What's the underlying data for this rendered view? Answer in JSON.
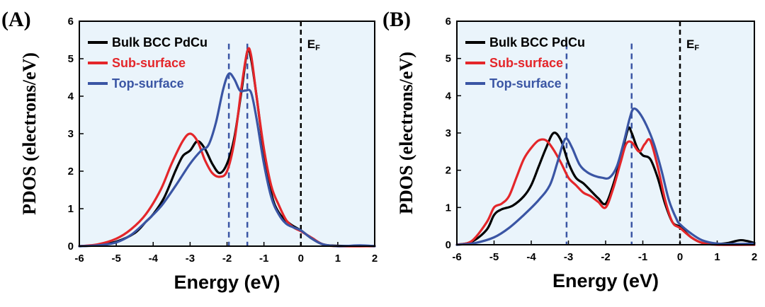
{
  "chart_data": [
    {
      "type": "line",
      "panel_label": "(A)",
      "xlabel": "Energy (eV)",
      "ylabel": "PDOS (electrons/eV)",
      "xlim": [
        -6,
        2
      ],
      "ylim": [
        0,
        6
      ],
      "xticks": [
        -6,
        -5,
        -4,
        -3,
        -2,
        -1,
        0,
        1,
        2
      ],
      "yticks": [
        0,
        1,
        2,
        3,
        4,
        5,
        6
      ],
      "fermi_label": "E",
      "fermi_sub": "F",
      "fermi_x": 0,
      "guide_lines_x": [
        -1.95,
        -1.45
      ],
      "legend_position": "top-left",
      "series": [
        {
          "name": "Bulk BCC PdCu",
          "color": "#000000",
          "points": [
            [
              -6,
              0
            ],
            [
              -5.5,
              0.03
            ],
            [
              -5,
              0.12
            ],
            [
              -4.5,
              0.35
            ],
            [
              -4.2,
              0.65
            ],
            [
              -4,
              0.85
            ],
            [
              -3.7,
              1.3
            ],
            [
              -3.4,
              2.0
            ],
            [
              -3.2,
              2.4
            ],
            [
              -3,
              2.55
            ],
            [
              -2.8,
              2.8
            ],
            [
              -2.6,
              2.6
            ],
            [
              -2.4,
              2.2
            ],
            [
              -2.2,
              1.95
            ],
            [
              -2.0,
              2.2
            ],
            [
              -1.8,
              2.9
            ],
            [
              -1.6,
              4.2
            ],
            [
              -1.45,
              5.2
            ],
            [
              -1.35,
              5.0
            ],
            [
              -1.2,
              4.0
            ],
            [
              -1.0,
              2.5
            ],
            [
              -0.8,
              1.4
            ],
            [
              -0.6,
              0.9
            ],
            [
              -0.3,
              0.6
            ],
            [
              0,
              0.42
            ],
            [
              0.3,
              0.2
            ],
            [
              0.6,
              0.05
            ],
            [
              1,
              0.01
            ],
            [
              2,
              0
            ]
          ]
        },
        {
          "name": "Sub-surface",
          "color": "#e4262a",
          "points": [
            [
              -6,
              0
            ],
            [
              -5.5,
              0.05
            ],
            [
              -5,
              0.2
            ],
            [
              -4.6,
              0.45
            ],
            [
              -4.2,
              0.85
            ],
            [
              -3.8,
              1.5
            ],
            [
              -3.5,
              2.2
            ],
            [
              -3.2,
              2.8
            ],
            [
              -3.0,
              3.0
            ],
            [
              -2.8,
              2.8
            ],
            [
              -2.6,
              2.3
            ],
            [
              -2.4,
              1.95
            ],
            [
              -2.2,
              1.85
            ],
            [
              -2.0,
              2.0
            ],
            [
              -1.8,
              2.8
            ],
            [
              -1.6,
              4.3
            ],
            [
              -1.45,
              5.2
            ],
            [
              -1.35,
              5.1
            ],
            [
              -1.2,
              4.0
            ],
            [
              -1.0,
              2.6
            ],
            [
              -0.8,
              1.6
            ],
            [
              -0.6,
              1.1
            ],
            [
              -0.4,
              0.7
            ],
            [
              -0.2,
              0.5
            ],
            [
              0,
              0.4
            ],
            [
              0.3,
              0.22
            ],
            [
              0.6,
              0.05
            ],
            [
              1,
              0
            ],
            [
              2,
              0
            ]
          ]
        },
        {
          "name": "Top-surface",
          "color": "#3a55a4",
          "points": [
            [
              -6,
              0
            ],
            [
              -5.5,
              0.02
            ],
            [
              -5,
              0.1
            ],
            [
              -4.6,
              0.3
            ],
            [
              -4.2,
              0.65
            ],
            [
              -3.8,
              1.05
            ],
            [
              -3.4,
              1.6
            ],
            [
              -3.0,
              2.2
            ],
            [
              -2.7,
              2.55
            ],
            [
              -2.5,
              2.7
            ],
            [
              -2.3,
              3.3
            ],
            [
              -2.1,
              4.2
            ],
            [
              -1.95,
              4.6
            ],
            [
              -1.8,
              4.45
            ],
            [
              -1.65,
              4.15
            ],
            [
              -1.5,
              4.15
            ],
            [
              -1.35,
              4.1
            ],
            [
              -1.2,
              3.4
            ],
            [
              -1.0,
              2.2
            ],
            [
              -0.8,
              1.3
            ],
            [
              -0.6,
              0.85
            ],
            [
              -0.4,
              0.6
            ],
            [
              -0.2,
              0.5
            ],
            [
              0,
              0.42
            ],
            [
              0.3,
              0.2
            ],
            [
              0.6,
              0.05
            ],
            [
              1,
              0
            ],
            [
              1.6,
              0.02
            ],
            [
              2,
              0
            ]
          ]
        }
      ]
    },
    {
      "type": "line",
      "panel_label": "(B)",
      "xlabel": "Energy (eV)",
      "ylabel": "PDOS (electrons/eV)",
      "xlim": [
        -6,
        2
      ],
      "ylim": [
        0,
        6
      ],
      "xticks": [
        -6,
        -5,
        -4,
        -3,
        -2,
        -1,
        0,
        1,
        2
      ],
      "yticks": [
        0,
        1,
        2,
        3,
        4,
        5,
        6
      ],
      "fermi_label": "E",
      "fermi_sub": "F",
      "fermi_x": 0,
      "guide_lines_x": [
        -3.05,
        -1.3
      ],
      "legend_position": "top-left",
      "series": [
        {
          "name": "Bulk BCC PdCu",
          "color": "#000000",
          "points": [
            [
              -6,
              0
            ],
            [
              -5.6,
              0.08
            ],
            [
              -5.2,
              0.4
            ],
            [
              -5,
              0.8
            ],
            [
              -4.8,
              0.95
            ],
            [
              -4.5,
              1.05
            ],
            [
              -4.2,
              1.3
            ],
            [
              -4,
              1.6
            ],
            [
              -3.8,
              2.1
            ],
            [
              -3.6,
              2.6
            ],
            [
              -3.4,
              3.0
            ],
            [
              -3.2,
              2.8
            ],
            [
              -3.0,
              2.2
            ],
            [
              -2.8,
              1.8
            ],
            [
              -2.6,
              1.65
            ],
            [
              -2.4,
              1.45
            ],
            [
              -2.2,
              1.25
            ],
            [
              -2.0,
              1.1
            ],
            [
              -1.8,
              1.6
            ],
            [
              -1.6,
              2.3
            ],
            [
              -1.4,
              3.1
            ],
            [
              -1.3,
              3.0
            ],
            [
              -1.15,
              2.6
            ],
            [
              -1.0,
              2.4
            ],
            [
              -0.8,
              2.3
            ],
            [
              -0.6,
              1.8
            ],
            [
              -0.4,
              1.1
            ],
            [
              -0.2,
              0.6
            ],
            [
              0,
              0.48
            ],
            [
              0.3,
              0.2
            ],
            [
              0.6,
              0.05
            ],
            [
              1,
              0.02
            ],
            [
              1.3,
              0.05
            ],
            [
              1.6,
              0.12
            ],
            [
              1.8,
              0.1
            ],
            [
              2,
              0.05
            ]
          ]
        },
        {
          "name": "Sub-surface",
          "color": "#e4262a",
          "points": [
            [
              -6,
              0
            ],
            [
              -5.6,
              0.1
            ],
            [
              -5.2,
              0.6
            ],
            [
              -5,
              1.0
            ],
            [
              -4.8,
              1.1
            ],
            [
              -4.6,
              1.3
            ],
            [
              -4.4,
              1.8
            ],
            [
              -4.2,
              2.3
            ],
            [
              -4,
              2.6
            ],
            [
              -3.8,
              2.8
            ],
            [
              -3.6,
              2.8
            ],
            [
              -3.4,
              2.55
            ],
            [
              -3.2,
              2.2
            ],
            [
              -3.0,
              1.8
            ],
            [
              -2.8,
              1.6
            ],
            [
              -2.6,
              1.4
            ],
            [
              -2.4,
              1.3
            ],
            [
              -2.2,
              1.15
            ],
            [
              -2.0,
              1.0
            ],
            [
              -1.8,
              1.5
            ],
            [
              -1.6,
              2.2
            ],
            [
              -1.45,
              2.7
            ],
            [
              -1.3,
              2.75
            ],
            [
              -1.1,
              2.5
            ],
            [
              -0.95,
              2.7
            ],
            [
              -0.8,
              2.8
            ],
            [
              -0.6,
              2.1
            ],
            [
              -0.4,
              1.2
            ],
            [
              -0.2,
              0.6
            ],
            [
              0,
              0.45
            ],
            [
              0.3,
              0.2
            ],
            [
              0.6,
              0.05
            ],
            [
              1,
              0
            ],
            [
              2,
              0
            ]
          ]
        },
        {
          "name": "Top-surface",
          "color": "#3a55a4",
          "points": [
            [
              -6,
              0
            ],
            [
              -5.5,
              0.05
            ],
            [
              -5,
              0.2
            ],
            [
              -4.6,
              0.45
            ],
            [
              -4.2,
              0.8
            ],
            [
              -3.8,
              1.2
            ],
            [
              -3.5,
              1.6
            ],
            [
              -3.3,
              2.2
            ],
            [
              -3.15,
              2.7
            ],
            [
              -3.05,
              2.85
            ],
            [
              -2.9,
              2.6
            ],
            [
              -2.7,
              2.15
            ],
            [
              -2.5,
              1.95
            ],
            [
              -2.3,
              1.85
            ],
            [
              -2.1,
              1.8
            ],
            [
              -1.9,
              1.8
            ],
            [
              -1.7,
              2.1
            ],
            [
              -1.5,
              2.8
            ],
            [
              -1.35,
              3.4
            ],
            [
              -1.25,
              3.65
            ],
            [
              -1.1,
              3.55
            ],
            [
              -0.9,
              3.2
            ],
            [
              -0.7,
              2.7
            ],
            [
              -0.5,
              2.0
            ],
            [
              -0.3,
              1.2
            ],
            [
              -0.1,
              0.7
            ],
            [
              0,
              0.55
            ],
            [
              0.3,
              0.3
            ],
            [
              0.6,
              0.12
            ],
            [
              1,
              0.03
            ],
            [
              1.5,
              0.02
            ],
            [
              2,
              0.03
            ]
          ]
        }
      ]
    }
  ]
}
